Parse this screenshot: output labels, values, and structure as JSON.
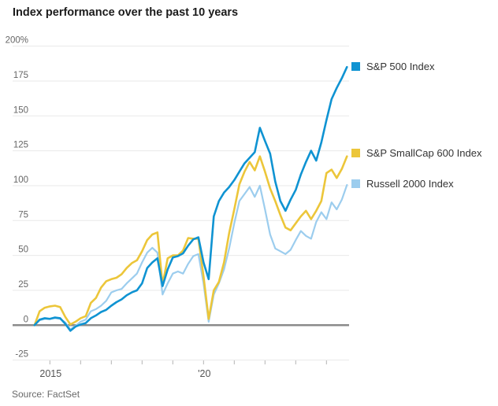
{
  "chart_data": {
    "type": "line",
    "title": "Index performance over the past 10 years",
    "source": "Source: FactSet",
    "unit": "percent change since start",
    "x_start_year": 2014.5,
    "x_step_years": 0.1666667,
    "y_axis": {
      "min": -25,
      "max": 200,
      "step": 25,
      "tick_labels": [
        "200%",
        "175",
        "150",
        "125",
        "100",
        "75",
        "50",
        "25",
        "0",
        "-25"
      ]
    },
    "x_axis": {
      "tick_years": [
        2015,
        2016,
        2017,
        2018,
        2019,
        2020,
        2021,
        2022,
        2023,
        2024
      ],
      "labeled_ticks": [
        {
          "year": 2015,
          "label": "2015"
        },
        {
          "year": 2020,
          "label": "'20"
        }
      ]
    },
    "grid": "horizontal",
    "legend_position": "right-of-line-ends",
    "series": [
      {
        "name": "S&P 500 Index",
        "color": "#0f93d2",
        "stroke_width": 2.6,
        "values": [
          0,
          4,
          5,
          4.5,
          5.5,
          5,
          1,
          -4,
          -1,
          0.5,
          1.5,
          5,
          7,
          9.5,
          11,
          14,
          16.5,
          18.5,
          21.5,
          23.5,
          25,
          30,
          41,
          45,
          48,
          28,
          40,
          48.5,
          49.5,
          51.5,
          57,
          61.5,
          63,
          45,
          33,
          78,
          89,
          95,
          99,
          104,
          110,
          116,
          120,
          124,
          141.5,
          132,
          123,
          103,
          89,
          82,
          90,
          97,
          108,
          117,
          125,
          118,
          131,
          147,
          162,
          170,
          177,
          185
        ]
      },
      {
        "name": "S&P SmallCap 600 Index",
        "color": "#ecc63a",
        "stroke_width": 2.6,
        "values": [
          0,
          10,
          12.5,
          13.5,
          14,
          13,
          6,
          0.5,
          2.5,
          5,
          6.5,
          16,
          19.5,
          27,
          31.5,
          33,
          34,
          36.5,
          41,
          44.5,
          46.5,
          53,
          61,
          65,
          66.5,
          29,
          48,
          50,
          50,
          53.5,
          62.5,
          62,
          62,
          35,
          4.5,
          25,
          31,
          45,
          66,
          83,
          101,
          110,
          117,
          111,
          121,
          110,
          98,
          89,
          79,
          70,
          68,
          73,
          78,
          82,
          76,
          82,
          89,
          109,
          111.5,
          105.5,
          112,
          121
        ]
      },
      {
        "name": "Russell 2000 Index",
        "color": "#9ccdee",
        "stroke_width": 2.2,
        "values": [
          0,
          3.5,
          4.5,
          4.5,
          5,
          4.5,
          2,
          -3,
          -0.5,
          2.5,
          4,
          10,
          11.5,
          14,
          17.5,
          23.5,
          25,
          26,
          30,
          33.5,
          37,
          45,
          52,
          55.5,
          52,
          22,
          30,
          37,
          38.5,
          37,
          44,
          49.5,
          51,
          30,
          2.5,
          22,
          30,
          40,
          55,
          73,
          89,
          94,
          99,
          92,
          100,
          83,
          65,
          55,
          53,
          51,
          54,
          61,
          67.5,
          64,
          62,
          74,
          81,
          76,
          88,
          83,
          90,
          100.5
        ]
      }
    ],
    "style": {
      "gridline_color": "#e9e9e9",
      "zero_line_color": "#8b8b8b",
      "tick_color": "#b3b3b3",
      "y_label_color": "#666666",
      "x_label_color": "#555555"
    }
  }
}
